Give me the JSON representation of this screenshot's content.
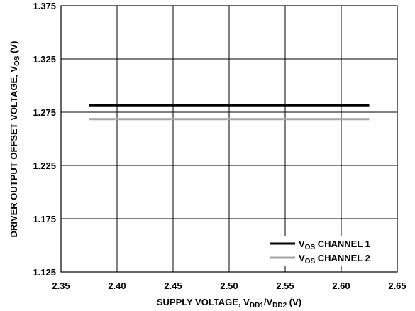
{
  "chart_data": {
    "type": "line",
    "xlabel": {
      "main": "SUPPLY VOLTAGE, V",
      "sub1": "DD1",
      "mid": "/V",
      "sub2": "DD2",
      "unit": " (V)"
    },
    "ylabel": {
      "main": "DRIVER OUTPUT OFFSET VOLTAGE, V",
      "sub": "OS",
      "unit": " (V)"
    },
    "xlim": [
      2.35,
      2.65
    ],
    "ylim": [
      1.125,
      1.375
    ],
    "x_ticks": [
      2.35,
      2.4,
      2.45,
      2.5,
      2.55,
      2.6,
      2.65
    ],
    "x_tick_labels": [
      "2.35",
      "2.40",
      "2.45",
      "2.50",
      "2.55",
      "2.60",
      "2.65"
    ],
    "y_ticks": [
      1.125,
      1.175,
      1.225,
      1.275,
      1.325,
      1.375
    ],
    "y_tick_labels": [
      "1.125",
      "1.175",
      "1.225",
      "1.275",
      "1.325",
      "1.375"
    ],
    "grid": true,
    "legend_position": "bottom-right",
    "series": [
      {
        "name": "V",
        "name_sub": "OS",
        "name_suffix": " CHANNEL 1",
        "color": "#000000",
        "x": [
          2.375,
          2.625
        ],
        "y": [
          1.2815,
          1.2815
        ]
      },
      {
        "name": "V",
        "name_sub": "OS",
        "name_suffix": " CHANNEL 2",
        "color": "#a6a6a6",
        "x": [
          2.375,
          2.625
        ],
        "y": [
          1.2685,
          1.2685
        ]
      }
    ]
  }
}
